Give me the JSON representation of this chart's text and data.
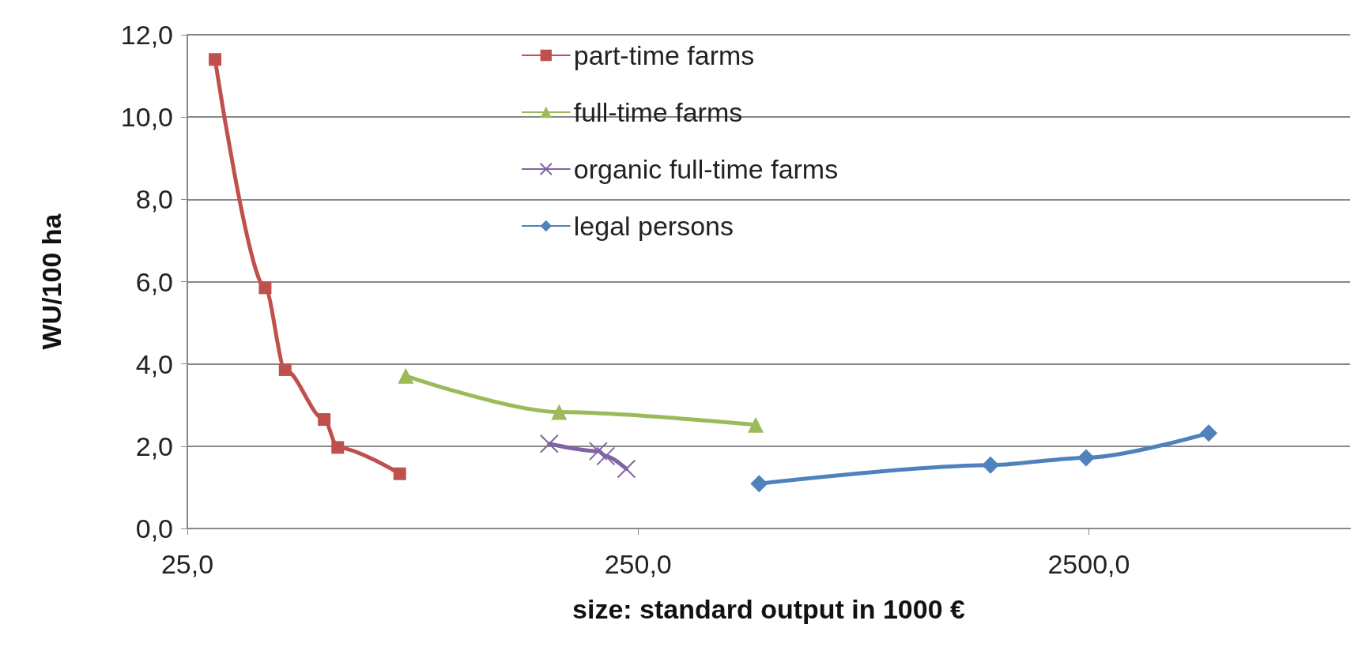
{
  "chart_data": {
    "type": "line",
    "xlabel": "size: standard output in 1000 €",
    "ylabel": "WU/100 ha",
    "log": "x",
    "xlim": [
      25,
      9500
    ],
    "xticks": [
      {
        "value": 25,
        "label": "25,0"
      },
      {
        "value": 250,
        "label": "250,0"
      },
      {
        "value": 2500,
        "label": "2500,0"
      }
    ],
    "ylim": [
      0,
      12
    ],
    "yticks": [
      {
        "value": 0,
        "label": "0,0"
      },
      {
        "value": 2,
        "label": "2,0"
      },
      {
        "value": 4,
        "label": "4,0"
      },
      {
        "value": 6,
        "label": "6,0"
      },
      {
        "value": 8,
        "label": "8,0"
      },
      {
        "value": 10,
        "label": "10,0"
      },
      {
        "value": 12,
        "label": "12,0"
      }
    ],
    "grid": "y",
    "legend": "top",
    "line_style": "solid",
    "series": [
      {
        "name": "part-time farms",
        "color": "#c0504d",
        "marker": "square",
        "x": [
          28.8,
          37.2,
          41.2,
          50.3,
          53.9,
          74.0
        ],
        "values": [
          11.4,
          5.85,
          3.86,
          2.65,
          1.97,
          1.33
        ]
      },
      {
        "name": "full-time farms",
        "color": "#9bbb59",
        "marker": "triangle",
        "x": [
          76.3,
          167,
          456
        ],
        "values": [
          3.71,
          2.83,
          2.52
        ]
      },
      {
        "name": "organic full-time farms",
        "color": "#8064a2",
        "marker": "cross",
        "x": [
          158.8,
          204,
          212,
          235.5
        ],
        "values": [
          2.06,
          1.88,
          1.76,
          1.45
        ]
      },
      {
        "name": "legal persons",
        "color": "#4f81bd",
        "marker": "diamond",
        "x": [
          464,
          1513,
          2466,
          4613
        ],
        "values": [
          1.09,
          1.54,
          1.72,
          2.32
        ]
      }
    ]
  }
}
